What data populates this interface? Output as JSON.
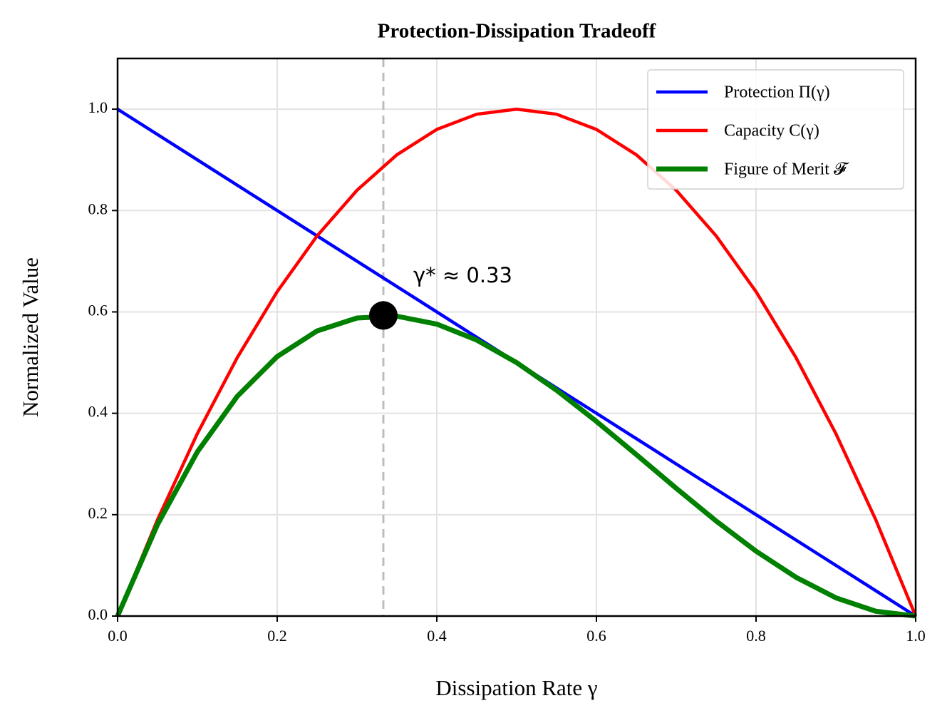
{
  "chart_data": {
    "type": "line",
    "title": "Protection-Dissipation Tradeoff",
    "x_label": "Dissipation Rate γ",
    "y_label": "Normalized Value",
    "x": [
      0,
      0.05,
      0.1,
      0.15,
      0.2,
      0.25,
      0.3,
      0.35,
      0.4,
      0.45,
      0.5,
      0.55,
      0.6,
      0.65,
      0.7,
      0.75,
      0.8,
      0.85,
      0.9,
      0.95,
      1
    ],
    "series": [
      {
        "name": "Protection Π(γ)",
        "color": "#0000ff",
        "values": [
          1,
          0.95,
          0.9,
          0.85,
          0.8,
          0.75,
          0.7,
          0.65,
          0.6,
          0.55,
          0.5,
          0.45,
          0.4,
          0.35,
          0.3,
          0.25,
          0.2,
          0.15,
          0.1,
          0.05,
          0
        ]
      },
      {
        "name": "Capacity C(γ)",
        "color": "#ff0000",
        "values": [
          0,
          0.19,
          0.36,
          0.51,
          0.64,
          0.75,
          0.84,
          0.91,
          0.96,
          0.99,
          1,
          0.99,
          0.96,
          0.91,
          0.84,
          0.75,
          0.64,
          0.51,
          0.36,
          0.19,
          0
        ]
      },
      {
        "name": "Figure of Merit 𝓕",
        "color": "#008000",
        "values": [
          0,
          0.1805,
          0.324,
          0.4335,
          0.512,
          0.5625,
          0.588,
          0.5915,
          0.576,
          0.5445,
          0.5,
          0.4455,
          0.384,
          0.3185,
          0.252,
          0.1875,
          0.128,
          0.0765,
          0.036,
          0.0095,
          0
        ]
      }
    ],
    "optimum": {
      "x": 0.333,
      "y": 0.593,
      "label": "γ* ≈ 0.33"
    },
    "xlim": [
      0,
      1
    ],
    "ylim": [
      0,
      1.1
    ],
    "xticks": [
      {
        "value": 0,
        "label": "0.0"
      },
      0.2,
      0.4,
      0.6,
      0.8,
      {
        "value": 1,
        "label": "1.0"
      }
    ],
    "yticks": [
      {
        "value": 0,
        "label": "0.0"
      },
      0.2,
      0.4,
      0.6,
      0.8,
      {
        "value": 1,
        "label": "1.0"
      }
    ],
    "grid": true,
    "legend": "upper right"
  }
}
